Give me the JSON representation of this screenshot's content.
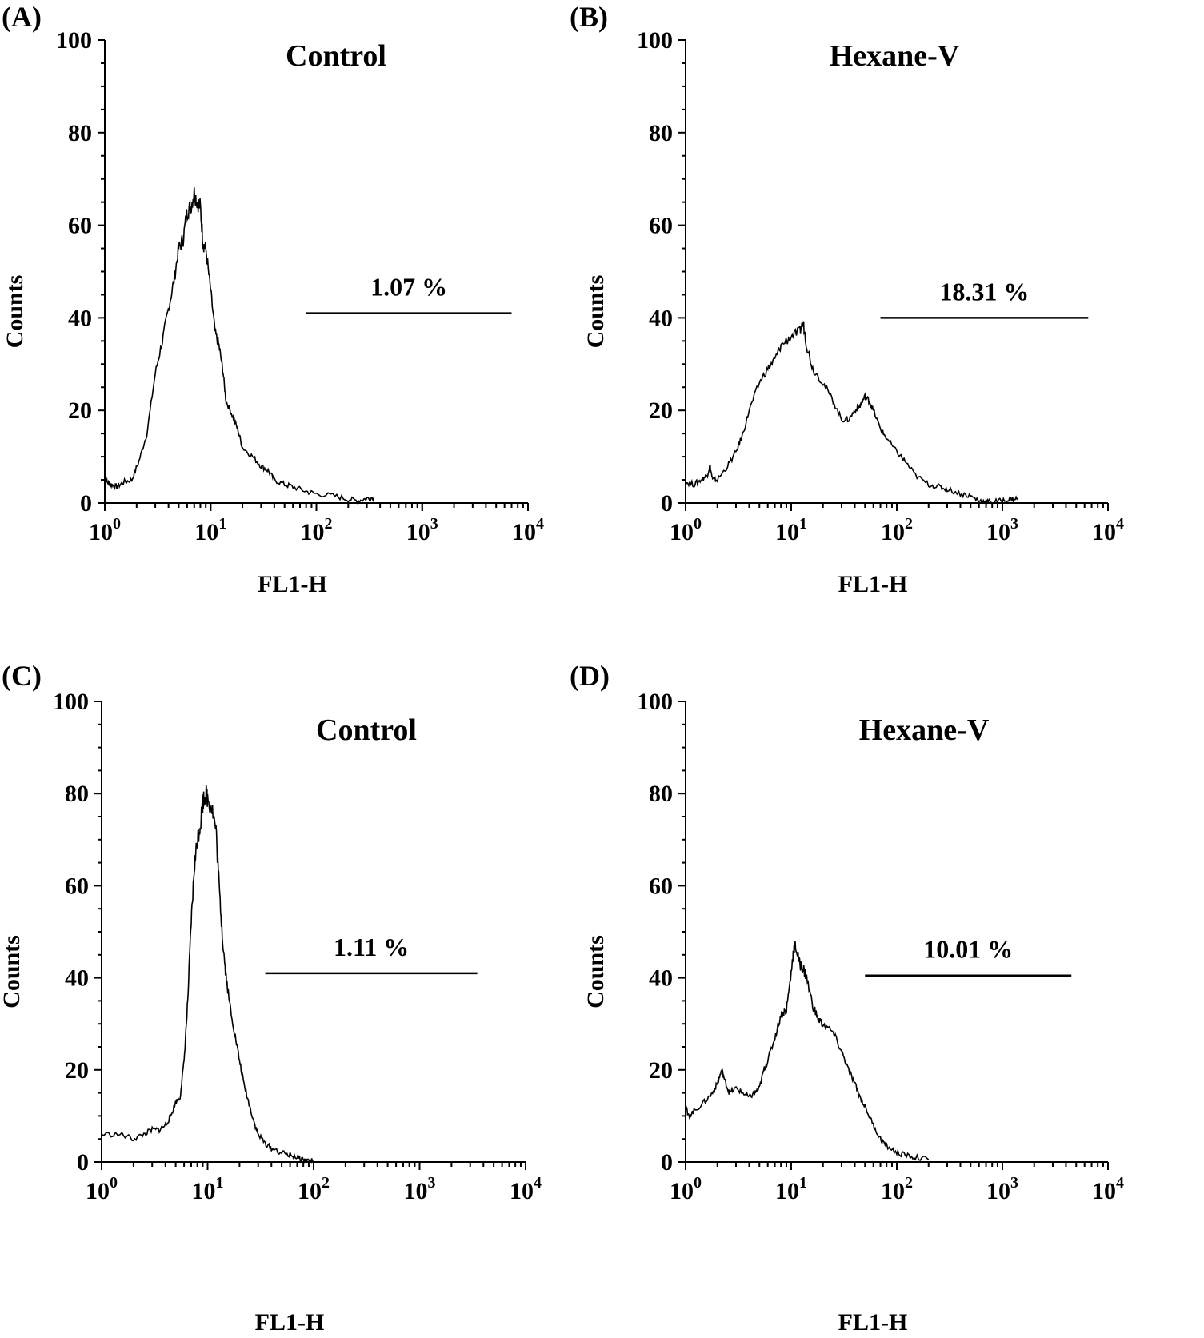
{
  "figure": {
    "background": "#ffffff",
    "ink": "#000000"
  },
  "chart_data": [
    {
      "panel": "(A)",
      "title": "Control",
      "type": "line",
      "xlabel": "FL1-H",
      "ylabel": "Counts",
      "xscale": "log",
      "xlim": [
        1,
        10000
      ],
      "ylim": [
        0,
        100
      ],
      "yticks": [
        "0",
        "20",
        "40",
        "60",
        "80",
        "100"
      ],
      "xticks": [
        {
          "base": "10",
          "exp": "0"
        },
        {
          "base": "10",
          "exp": "1"
        },
        {
          "base": "10",
          "exp": "2"
        },
        {
          "base": "10",
          "exp": "3"
        },
        {
          "base": "10",
          "exp": "4"
        }
      ],
      "gate": {
        "label": "1.07 %",
        "from": 80,
        "to": 7000,
        "y": 41
      },
      "series": [
        {
          "name": "Control",
          "x": [
            1,
            1.05,
            1.15,
            1.3,
            1.5,
            1.8,
            2.1,
            2.5,
            3,
            3.5,
            4,
            4.5,
            5,
            5.5,
            6,
            6.5,
            7,
            7.5,
            8,
            8.5,
            9,
            10,
            11,
            12,
            13,
            14,
            16,
            18,
            20,
            25,
            30,
            35,
            40,
            50,
            60,
            80,
            100,
            150,
            200,
            250,
            300,
            350
          ],
          "y": [
            7,
            4.5,
            4,
            3.5,
            4.5,
            5,
            9,
            15,
            28,
            35,
            42,
            48,
            55,
            57,
            63,
            64,
            67,
            65,
            64,
            56,
            55,
            46,
            37,
            34,
            29,
            22,
            19,
            16,
            12,
            10,
            8,
            7,
            5,
            4,
            3.5,
            2.5,
            2,
            1.5,
            0.8,
            0.5,
            1,
            1.2
          ]
        }
      ]
    },
    {
      "panel": "(B)",
      "title": "Hexane-V",
      "type": "line",
      "xlabel": "FL1-H",
      "ylabel": "Counts",
      "xscale": "log",
      "xlim": [
        1,
        10000
      ],
      "ylim": [
        0,
        100
      ],
      "yticks": [
        "0",
        "20",
        "40",
        "60",
        "80",
        "100"
      ],
      "xticks": [
        {
          "base": "10",
          "exp": "0"
        },
        {
          "base": "10",
          "exp": "1"
        },
        {
          "base": "10",
          "exp": "2"
        },
        {
          "base": "10",
          "exp": "3"
        },
        {
          "base": "10",
          "exp": "4"
        }
      ],
      "gate": {
        "label": "18.31 %",
        "from": 70,
        "to": 6500,
        "y": 40
      },
      "series": [
        {
          "name": "Hexane-V",
          "x": [
            1,
            1.2,
            1.4,
            1.6,
            1.7,
            1.8,
            2,
            2.5,
            3,
            3.5,
            4,
            5,
            6,
            7,
            8,
            10,
            12,
            13,
            14,
            16,
            20,
            25,
            30,
            35,
            40,
            45,
            50,
            55,
            60,
            70,
            80,
            100,
            120,
            150,
            200,
            250,
            300,
            400,
            500,
            600,
            700,
            800,
            1000,
            1200,
            1400
          ],
          "y": [
            4.5,
            4,
            5,
            6,
            8,
            5,
            5,
            8,
            11,
            15,
            20,
            26,
            29,
            31,
            34,
            36,
            37,
            39,
            34,
            29,
            26,
            22,
            18,
            18,
            20,
            21,
            23,
            22,
            20,
            16,
            14,
            11,
            9,
            6,
            4,
            3.5,
            3,
            2,
            1.5,
            0.5,
            0.3,
            0.2,
            0.5,
            0.8,
            1
          ]
        }
      ]
    },
    {
      "panel": "(C)",
      "title": "Control",
      "type": "line",
      "xlabel": "FL1-H",
      "ylabel": "Counts",
      "xscale": "log",
      "xlim": [
        1,
        10000
      ],
      "ylim": [
        0,
        100
      ],
      "yticks": [
        "0",
        "20",
        "40",
        "60",
        "80",
        "100"
      ],
      "xticks": [
        {
          "base": "10",
          "exp": "0"
        },
        {
          "base": "10",
          "exp": "1"
        },
        {
          "base": "10",
          "exp": "2"
        },
        {
          "base": "10",
          "exp": "3"
        },
        {
          "base": "10",
          "exp": "4"
        }
      ],
      "gate": {
        "label": "1.11 %",
        "from": 35,
        "to": 3500,
        "y": 41
      },
      "series": [
        {
          "name": "Control",
          "x": [
            1,
            1.5,
            2,
            2.5,
            3,
            3.5,
            4,
            4.5,
            5,
            5.5,
            6,
            6.5,
            7,
            7.5,
            8,
            8.5,
            9,
            9.5,
            10,
            11,
            12,
            13,
            14,
            15,
            16,
            18,
            20,
            22,
            25,
            28,
            30,
            35,
            40,
            50,
            60,
            70,
            80,
            90,
            100
          ],
          "y": [
            6,
            6,
            5,
            6,
            7,
            7,
            8,
            10,
            13,
            14,
            22,
            35,
            52,
            64,
            70,
            73,
            78,
            80,
            79,
            77,
            72,
            58,
            47,
            40,
            35,
            28,
            22,
            17,
            12,
            8,
            6,
            4,
            3,
            2,
            1.5,
            1,
            0.5,
            0.3,
            0.2
          ]
        }
      ]
    },
    {
      "panel": "(D)",
      "title": "Hexane-V",
      "type": "line",
      "xlabel": "FL1-H",
      "ylabel": "Counts",
      "xscale": "log",
      "xlim": [
        1,
        10000
      ],
      "ylim": [
        0,
        100
      ],
      "yticks": [
        "0",
        "20",
        "40",
        "60",
        "80",
        "100"
      ],
      "xticks": [
        {
          "base": "10",
          "exp": "0"
        },
        {
          "base": "10",
          "exp": "1"
        },
        {
          "base": "10",
          "exp": "2"
        },
        {
          "base": "10",
          "exp": "3"
        },
        {
          "base": "10",
          "exp": "4"
        }
      ],
      "gate": {
        "label": "10.01 %",
        "from": 50,
        "to": 4500,
        "y": 40.5
      },
      "series": [
        {
          "name": "Hexane-V",
          "x": [
            1,
            1.05,
            1.2,
            1.5,
            1.8,
            2,
            2.2,
            2.4,
            2.6,
            3,
            3.5,
            4,
            4.5,
            5,
            5.5,
            6,
            7,
            8,
            9,
            10,
            10.5,
            11,
            12,
            13,
            14,
            16,
            18,
            20,
            25,
            30,
            35,
            40,
            45,
            50,
            60,
            70,
            80,
            100,
            120,
            150,
            200
          ],
          "y": [
            13,
            10,
            11,
            13,
            15,
            17,
            20,
            17,
            15,
            16,
            15,
            14,
            15,
            16,
            20,
            22,
            27,
            32,
            33,
            41,
            46,
            47,
            43,
            42,
            40,
            34,
            31,
            30,
            28,
            24,
            20,
            17,
            14,
            12,
            8,
            5,
            3.5,
            2,
            1.5,
            1,
            0.5
          ]
        }
      ]
    }
  ]
}
